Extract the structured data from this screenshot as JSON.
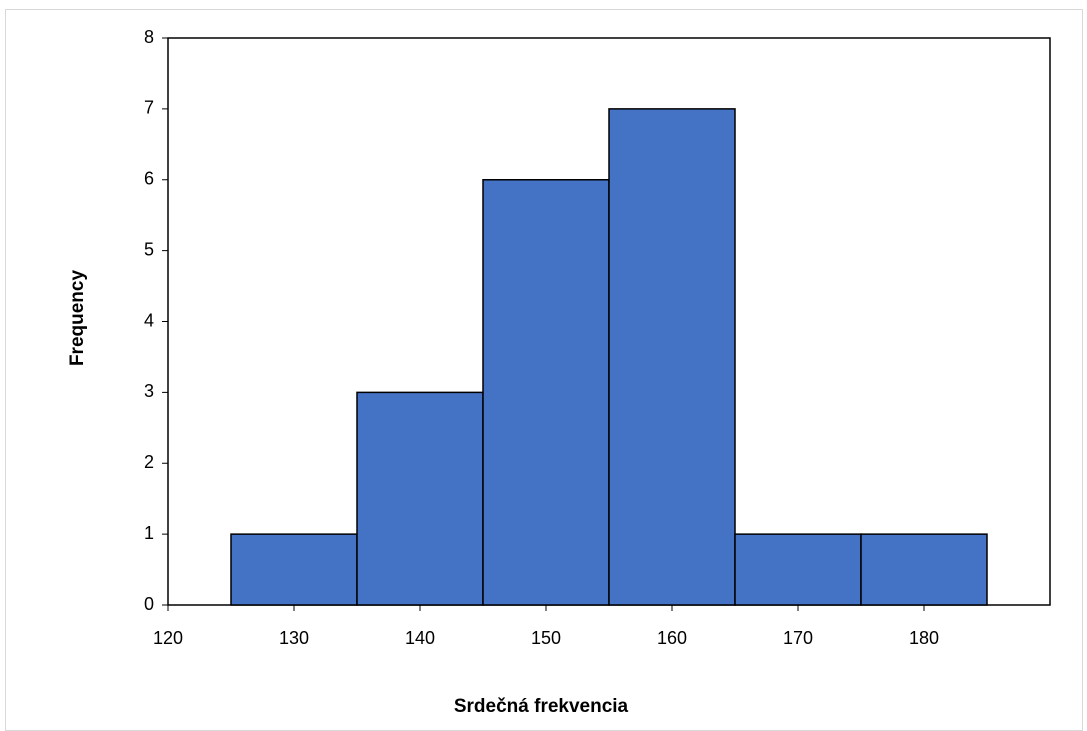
{
  "chart_data": {
    "type": "histogram",
    "x_label": "Srdečná frekvencia",
    "y_label": "Frequency",
    "bins": [
      125,
      135,
      145,
      155,
      165,
      175,
      185
    ],
    "values": [
      1,
      3,
      6,
      7,
      1,
      1
    ],
    "color": "#4472c4",
    "xlim": [
      120,
      190
    ],
    "xticks": [
      120,
      130,
      140,
      150,
      160,
      170,
      180
    ],
    "ylim": [
      0,
      8
    ],
    "yticks": [
      0,
      1,
      2,
      3,
      4,
      5,
      6,
      7,
      8
    ]
  }
}
